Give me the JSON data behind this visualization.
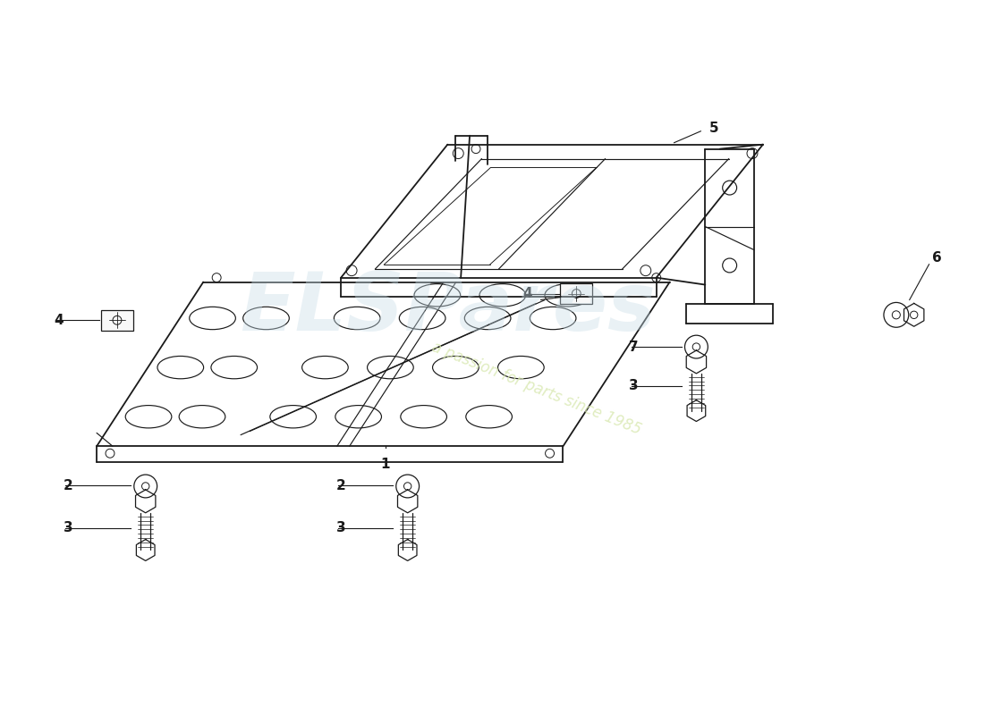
{
  "background_color": "#ffffff",
  "line_color": "#1a1a1a",
  "watermark_text1": "ELSPares",
  "watermark_text2": "a passion for parts since 1985",
  "watermark_color1": "#c8dde8",
  "watermark_color2": "#d8e8b0",
  "fig_width": 11.0,
  "fig_height": 8.0,
  "dpi": 100,
  "label_fontsize": 11
}
